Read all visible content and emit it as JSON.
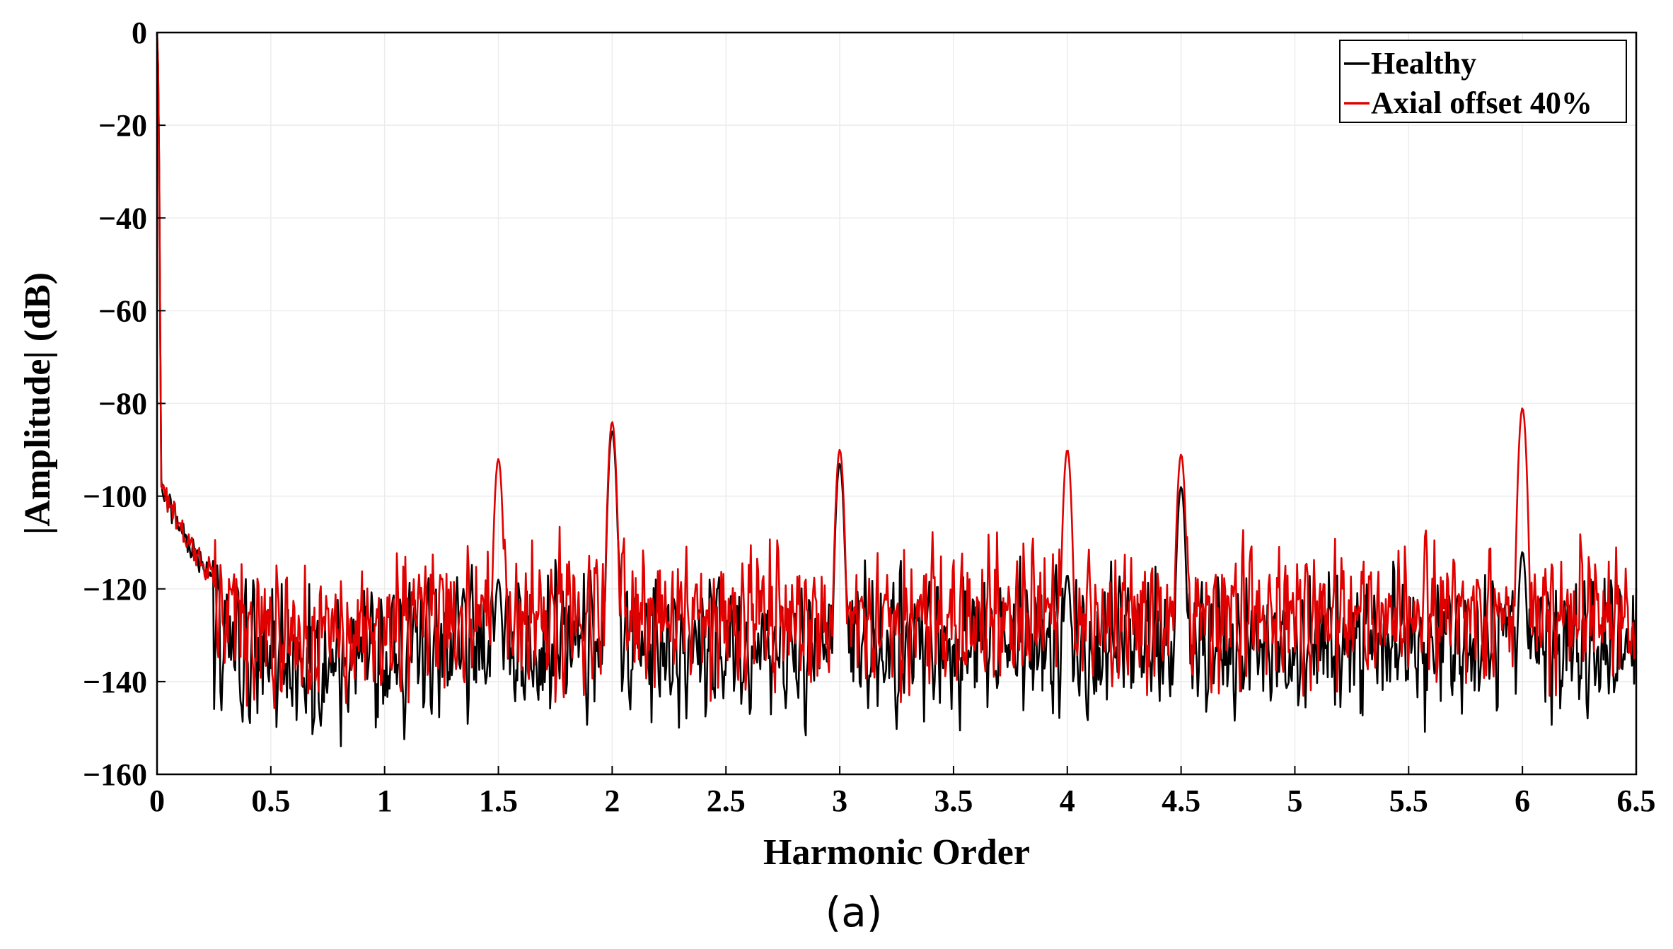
{
  "chart_data": {
    "type": "line",
    "title": "",
    "caption": "(a)",
    "xlabel": "Harmonic Order",
    "ylabel": "|Amplitude| (dB)",
    "xlim": [
      0,
      6.5
    ],
    "ylim": [
      -160,
      0
    ],
    "x_ticks": [
      0,
      0.5,
      1,
      1.5,
      2,
      2.5,
      3,
      3.5,
      4,
      4.5,
      5,
      5.5,
      6,
      6.5
    ],
    "x_tick_labels": [
      "0",
      "0.5",
      "1",
      "1.5",
      "2",
      "2.5",
      "3",
      "3.5",
      "4",
      "4.5",
      "5",
      "5.5",
      "6",
      "6.5"
    ],
    "y_ticks": [
      0,
      -20,
      -40,
      -60,
      -80,
      -100,
      -120,
      -140,
      -160
    ],
    "y_tick_labels": [
      "0",
      "−20",
      "−40",
      "−60",
      "−80",
      "−100",
      "−120",
      "−140",
      "−160"
    ],
    "grid": true,
    "legend_position": "top-right",
    "series": [
      {
        "name": "Healthy",
        "color": "#000000",
        "noise_floor": -132,
        "noise_amplitude": 10,
        "peaks": [
          {
            "x": 0.0,
            "y": 0
          },
          {
            "x": 1.5,
            "y": -118
          },
          {
            "x": 2.0,
            "y": -86
          },
          {
            "x": 3.0,
            "y": -93
          },
          {
            "x": 4.0,
            "y": -117
          },
          {
            "x": 4.5,
            "y": -98
          },
          {
            "x": 6.0,
            "y": -112
          }
        ]
      },
      {
        "name": "Axial offset 40%",
        "color": "#e00000",
        "noise_floor": -126,
        "noise_amplitude": 10,
        "peaks": [
          {
            "x": 0.0,
            "y": 0
          },
          {
            "x": 1.5,
            "y": -92
          },
          {
            "x": 2.0,
            "y": -84
          },
          {
            "x": 3.0,
            "y": -90
          },
          {
            "x": 4.0,
            "y": -90
          },
          {
            "x": 4.5,
            "y": -91
          },
          {
            "x": 6.0,
            "y": -81
          }
        ]
      }
    ]
  }
}
